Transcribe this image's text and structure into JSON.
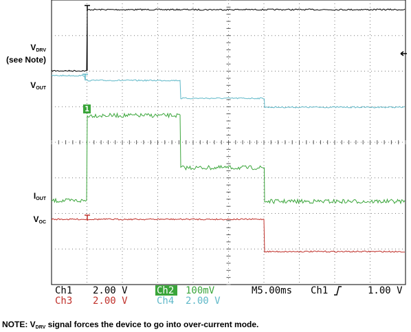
{
  "labels": {
    "vdrv": {
      "main": "V",
      "sub": "DRV"
    },
    "see_note": "(see Note)",
    "vout": {
      "main": "V",
      "sub": "OUT"
    },
    "iout": {
      "main": "I",
      "sub": "OUT"
    },
    "voc": {
      "main": "V",
      "sub": "OC"
    }
  },
  "markers": {
    "ch2": "1"
  },
  "readouts": {
    "ch1_name": "Ch1",
    "ch1_scale": "2.00 V",
    "ch2_name": "Ch2",
    "ch2_scale": "100mV",
    "timebase": "M5.00ms",
    "trigger_source": "Ch1",
    "trigger_level": "1.00 V",
    "ch3_name": "Ch3",
    "ch3_scale": "2.00 V",
    "ch4_name": "Ch4",
    "ch4_scale": "2.00 V"
  },
  "note": {
    "prefix": "NOTE: V",
    "sub": "DRV",
    "text": " signal forces the device to go into over-current mode."
  }
}
